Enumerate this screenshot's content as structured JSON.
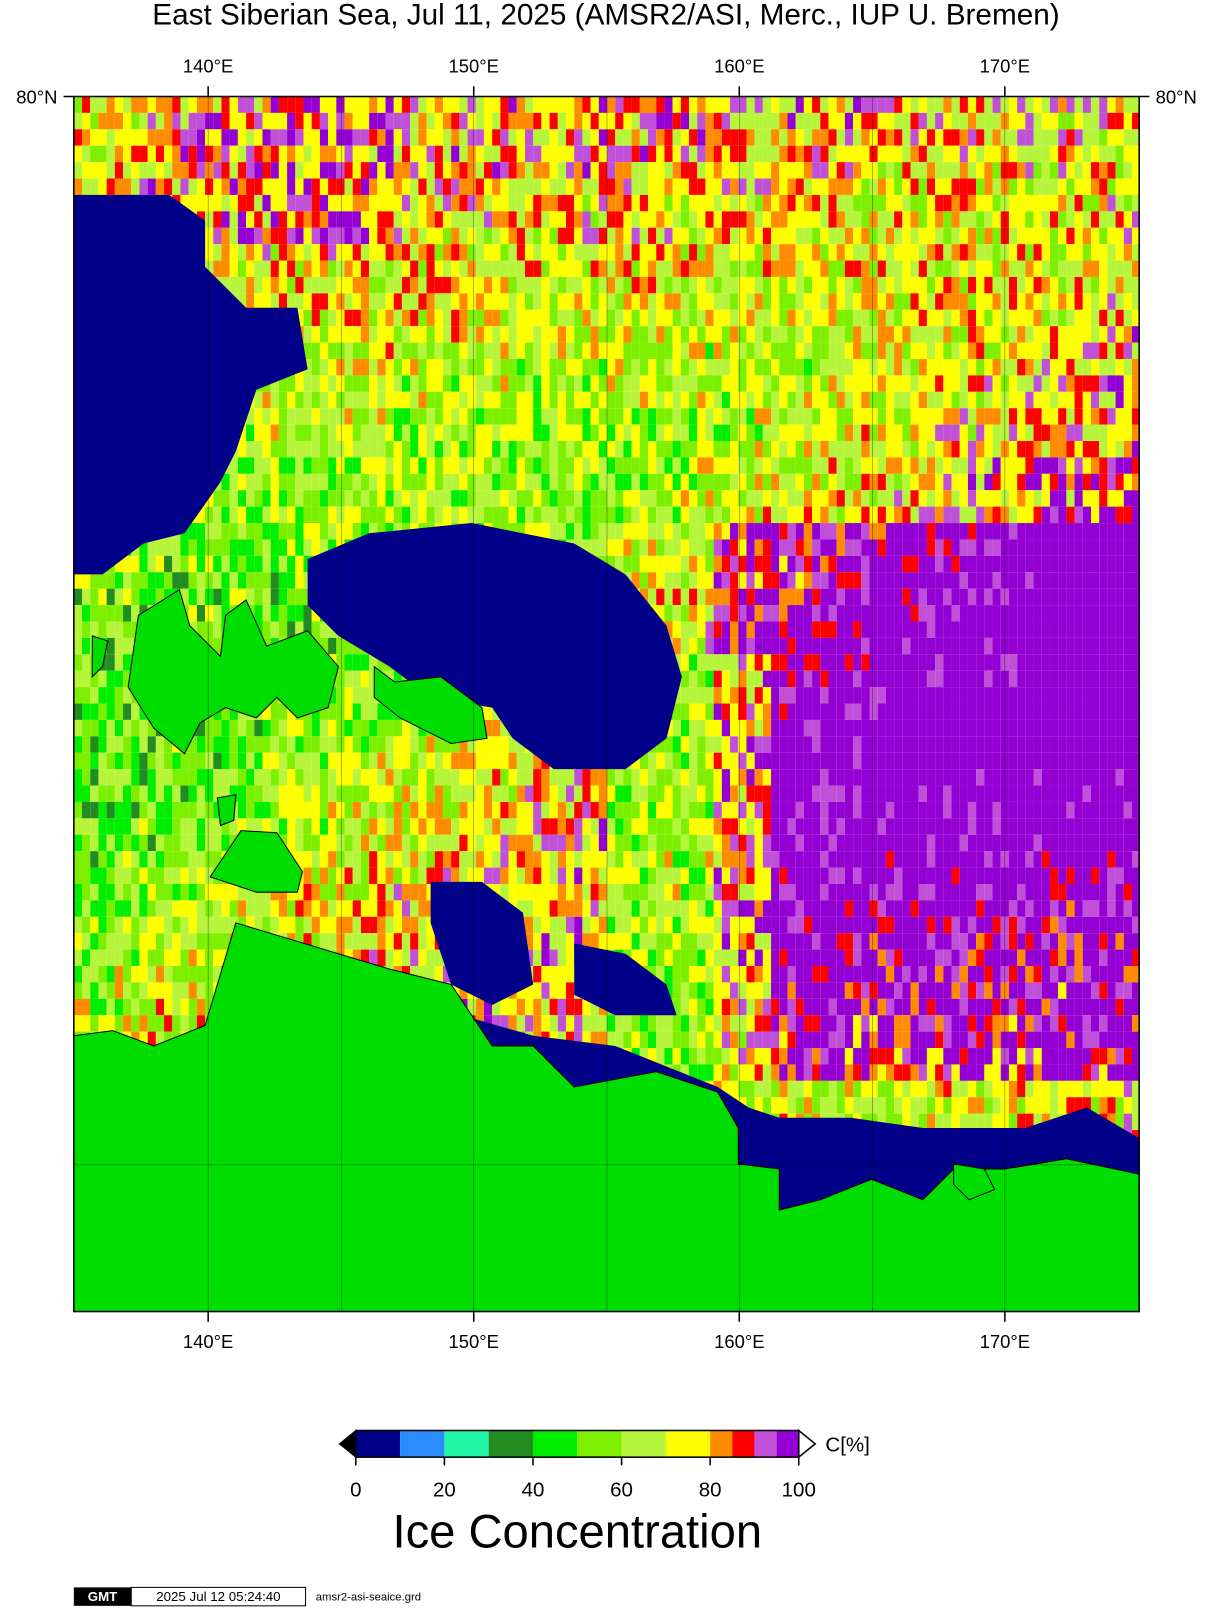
{
  "title": "East Siberian Sea, Jul 11, 2025 (AMSR2/ASI, Merc., IUP U. Bremen)",
  "map": {
    "longitude_labels": [
      "140°E",
      "150°E",
      "160°E",
      "170°E"
    ],
    "latitude_label": "80°N"
  },
  "colorbar": {
    "unit_label": "C[%]",
    "title": "Ice Concentration",
    "ticks": [
      0,
      20,
      40,
      60,
      80,
      100
    ],
    "bounds": [
      0,
      10,
      20,
      30,
      40,
      50,
      60,
      70,
      80,
      85,
      90,
      95,
      100
    ],
    "colors": [
      "#000088",
      "#2b8cff",
      "#22f5a5",
      "#228b22",
      "#00ee00",
      "#7cf000",
      "#b7f53a",
      "#ffff00",
      "#ff8c00",
      "#ff0000",
      "#c050d8",
      "#9400d3"
    ]
  },
  "footer": {
    "logo": "GMT",
    "timestamp": "2025 Jul 12 05:24:40",
    "file": "amsr2-asi-seaice.grd"
  }
}
